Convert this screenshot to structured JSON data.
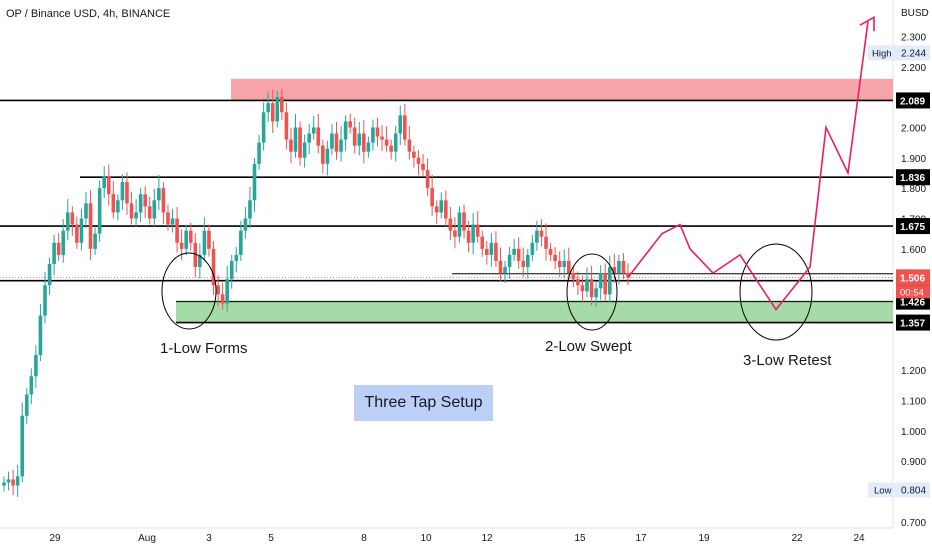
{
  "header": {
    "title": "OP / Binance USD, 4h, BINANCE"
  },
  "colors": {
    "up": "#26a69a",
    "down": "#ef5350",
    "supply": "#f59a9e",
    "demand": "#95d49a",
    "projection": "#e91e63",
    "countdown": "#ef5350"
  },
  "annotations": {
    "low1": "1-Low Forms",
    "low2": "2-Low Swept",
    "low3": "3-Low Retest",
    "setup": "Three Tap Setup"
  },
  "chart_data": {
    "type": "candlestick",
    "currency": "BUSD",
    "ylim": [
      0.68,
      2.42
    ],
    "y_ticks": [
      "2.300",
      "2.200",
      "2.000",
      "1.900",
      "1.800",
      "1.700",
      "1.600",
      "1.200",
      "1.100",
      "1.000",
      "0.900",
      "0.700"
    ],
    "x_ticks": [
      "29",
      "Aug",
      "3",
      "5",
      "8",
      "10",
      "12",
      "15",
      "17",
      "19",
      "22",
      "24"
    ],
    "levels": [
      {
        "value": 2.089,
        "label": "2.089"
      },
      {
        "value": 1.836,
        "label": "1.836"
      },
      {
        "value": 1.675,
        "label": "1.675"
      },
      {
        "value": 1.495,
        "label": "1.495"
      },
      {
        "value": 1.426,
        "label": "1.426"
      },
      {
        "value": 1.357,
        "label": "1.357"
      }
    ],
    "last_price": {
      "value": 1.506,
      "label": "1.506",
      "countdown": "00:54"
    },
    "high": {
      "name": "High",
      "value": 2.244,
      "label": "2.244"
    },
    "low": {
      "name": "Low",
      "value": 0.804,
      "label": "0.804"
    },
    "supply_zone": [
      2.089,
      2.16
    ],
    "demand_zone": [
      1.357,
      1.43
    ],
    "closes": [
      0.83,
      0.84,
      0.82,
      0.85,
      1.05,
      1.12,
      1.18,
      1.25,
      1.38,
      1.48,
      1.55,
      1.62,
      1.58,
      1.66,
      1.72,
      1.68,
      1.62,
      1.7,
      1.75,
      1.6,
      1.65,
      1.8,
      1.84,
      1.78,
      1.72,
      1.76,
      1.82,
      1.75,
      1.7,
      1.72,
      1.78,
      1.74,
      1.7,
      1.76,
      1.8,
      1.72,
      1.68,
      1.7,
      1.62,
      1.6,
      1.66,
      1.62,
      1.54,
      1.58,
      1.66,
      1.6,
      1.48,
      1.45,
      1.42,
      1.5,
      1.56,
      1.58,
      1.66,
      1.7,
      1.76,
      1.88,
      1.95,
      2.05,
      2.08,
      2.02,
      2.1,
      2.05,
      1.96,
      1.92,
      2.0,
      1.9,
      1.95,
      1.98,
      2.0,
      1.94,
      1.88,
      1.93,
      1.98,
      1.92,
      1.96,
      2.02,
      2.0,
      1.94,
      1.98,
      1.92,
      1.95,
      2.0,
      1.97,
      1.96,
      1.94,
      1.92,
      1.98,
      2.04,
      1.96,
      1.92,
      1.9,
      1.88,
      1.86,
      1.8,
      1.74,
      1.72,
      1.76,
      1.7,
      1.66,
      1.64,
      1.72,
      1.66,
      1.62,
      1.68,
      1.64,
      1.6,
      1.58,
      1.62,
      1.56,
      1.52,
      1.54,
      1.58,
      1.6,
      1.56,
      1.54,
      1.58,
      1.62,
      1.66,
      1.64,
      1.6,
      1.58,
      1.56,
      1.54,
      1.56,
      1.52,
      1.5,
      1.48,
      1.46,
      1.5,
      1.44,
      1.47,
      1.52,
      1.45,
      1.54,
      1.52,
      1.56,
      1.52,
      1.506
    ],
    "projection": [
      [
        1.506,
        0
      ],
      [
        1.68,
        7
      ],
      [
        1.56,
        10
      ],
      [
        1.63,
        14
      ],
      [
        1.4,
        20
      ],
      [
        1.54,
        23
      ],
      [
        2.0,
        29
      ],
      [
        1.85,
        32
      ],
      [
        2.35,
        36
      ]
    ]
  }
}
